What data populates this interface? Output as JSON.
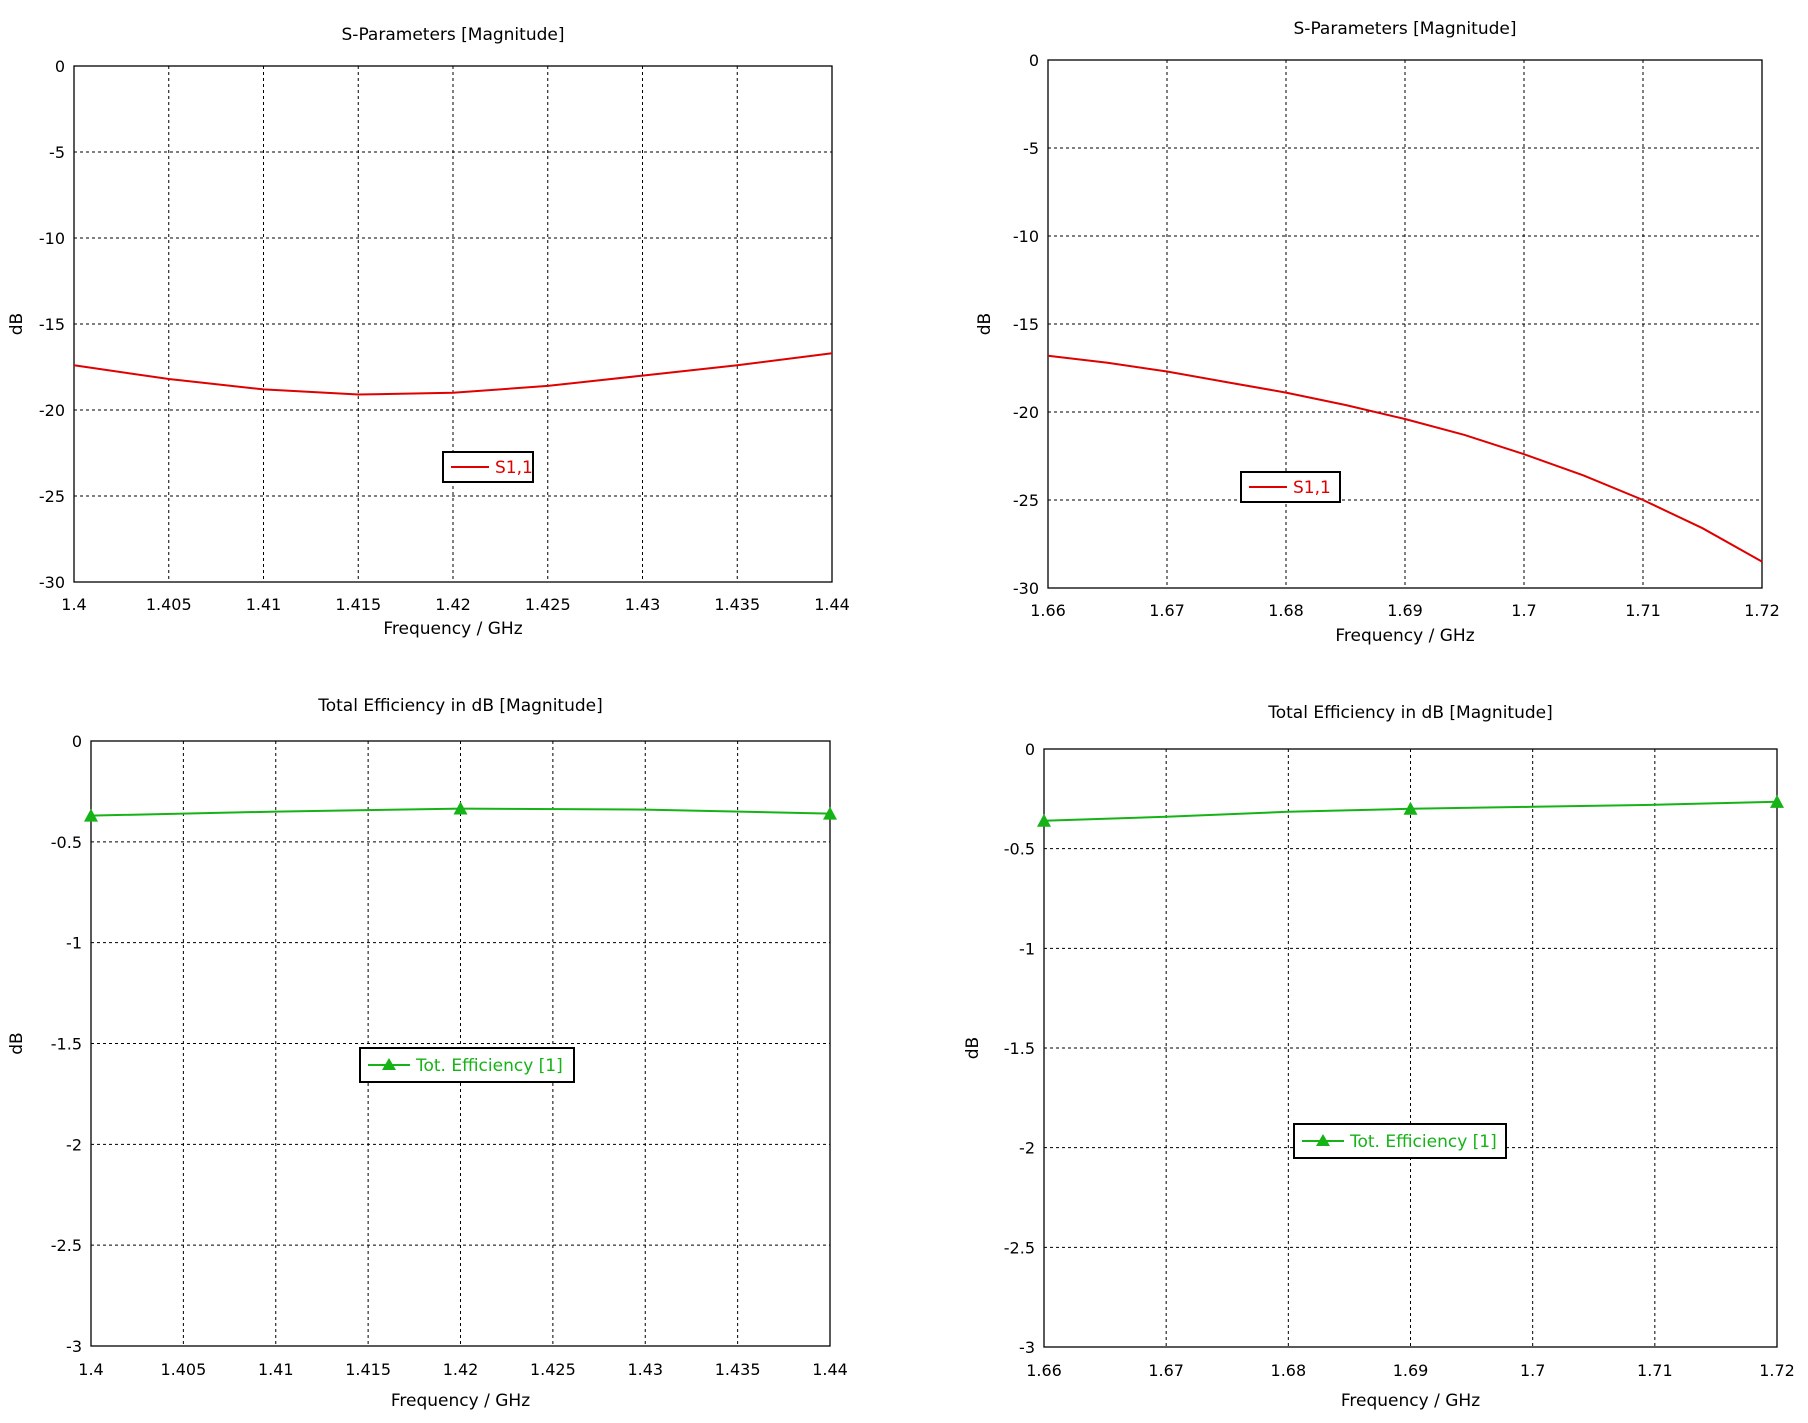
{
  "chart_data": [
    {
      "type": "line",
      "title": "S-Parameters [Magnitude]",
      "xlabel": "Frequency / GHz",
      "ylabel": "dB",
      "xlim": [
        1.4,
        1.44
      ],
      "ylim": [
        -30,
        0
      ],
      "xticks": [
        "1.4",
        "1.405",
        "1.41",
        "1.415",
        "1.42",
        "1.425",
        "1.43",
        "1.435",
        "1.44"
      ],
      "yticks": [
        "0",
        "-5",
        "-10",
        "-15",
        "-20",
        "-25",
        "-30"
      ],
      "grid": true,
      "legend": "center",
      "series": [
        {
          "name": "S1,1",
          "color": "#e00000",
          "marker": "none",
          "x": [
            1.4,
            1.405,
            1.41,
            1.415,
            1.42,
            1.425,
            1.43,
            1.435,
            1.44
          ],
          "y": [
            -17.4,
            -18.2,
            -18.8,
            -19.1,
            -19.0,
            -18.6,
            -18.0,
            -17.4,
            -16.7
          ]
        }
      ]
    },
    {
      "type": "line",
      "title": "S-Parameters [Magnitude]",
      "xlabel": "Frequency / GHz",
      "ylabel": "dB",
      "xlim": [
        1.66,
        1.72
      ],
      "ylim": [
        -30,
        0
      ],
      "xticks": [
        "1.66",
        "1.67",
        "1.68",
        "1.69",
        "1.7",
        "1.71",
        "1.72"
      ],
      "yticks": [
        "0",
        "-5",
        "-10",
        "-15",
        "-20",
        "-25",
        "-30"
      ],
      "grid": true,
      "legend": "center-left",
      "series": [
        {
          "name": "S1,1",
          "color": "#e00000",
          "marker": "none",
          "x": [
            1.66,
            1.665,
            1.67,
            1.675,
            1.68,
            1.685,
            1.69,
            1.695,
            1.7,
            1.705,
            1.71,
            1.715,
            1.72
          ],
          "y": [
            -16.8,
            -17.2,
            -17.7,
            -18.3,
            -18.9,
            -19.6,
            -20.4,
            -21.3,
            -22.4,
            -23.6,
            -25.0,
            -26.6,
            -28.5
          ]
        }
      ]
    },
    {
      "type": "line",
      "title": "Total Efficiency in dB [Magnitude]",
      "xlabel": "Frequency / GHz",
      "ylabel": "dB",
      "xlim": [
        1.4,
        1.44
      ],
      "ylim": [
        -3,
        0
      ],
      "xticks": [
        "1.4",
        "1.405",
        "1.41",
        "1.415",
        "1.42",
        "1.425",
        "1.43",
        "1.435",
        "1.44"
      ],
      "yticks": [
        "0",
        "-0.5",
        "-1",
        "-1.5",
        "-2",
        "-2.5",
        "-3"
      ],
      "grid": true,
      "legend": "center",
      "series": [
        {
          "name": "Tot. Efficiency [1]",
          "color": "#16b316",
          "marker": "triangle",
          "x": [
            1.4,
            1.41,
            1.42,
            1.43,
            1.44
          ],
          "y": [
            -0.37,
            -0.35,
            -0.335,
            -0.34,
            -0.36
          ],
          "marker_x": [
            1.4,
            1.42,
            1.44
          ],
          "marker_y": [
            -0.37,
            -0.335,
            -0.36
          ]
        }
      ]
    },
    {
      "type": "line",
      "title": "Total Efficiency in dB [Magnitude]",
      "xlabel": "Frequency / GHz",
      "ylabel": "dB",
      "xlim": [
        1.66,
        1.72
      ],
      "ylim": [
        -3,
        0
      ],
      "xticks": [
        "1.66",
        "1.67",
        "1.68",
        "1.69",
        "1.7",
        "1.71",
        "1.72"
      ],
      "yticks": [
        "0",
        "-0.5",
        "-1",
        "-1.5",
        "-2",
        "-2.5",
        "-3"
      ],
      "grid": true,
      "legend": "center-bottom",
      "series": [
        {
          "name": "Tot. Efficiency [1]",
          "color": "#16b316",
          "marker": "triangle",
          "x": [
            1.66,
            1.67,
            1.68,
            1.69,
            1.7,
            1.71,
            1.72
          ],
          "y": [
            -0.36,
            -0.34,
            -0.315,
            -0.3,
            -0.29,
            -0.28,
            -0.265
          ],
          "marker_x": [
            1.66,
            1.69,
            1.72
          ],
          "marker_y": [
            -0.36,
            -0.3,
            -0.265
          ]
        }
      ]
    }
  ]
}
